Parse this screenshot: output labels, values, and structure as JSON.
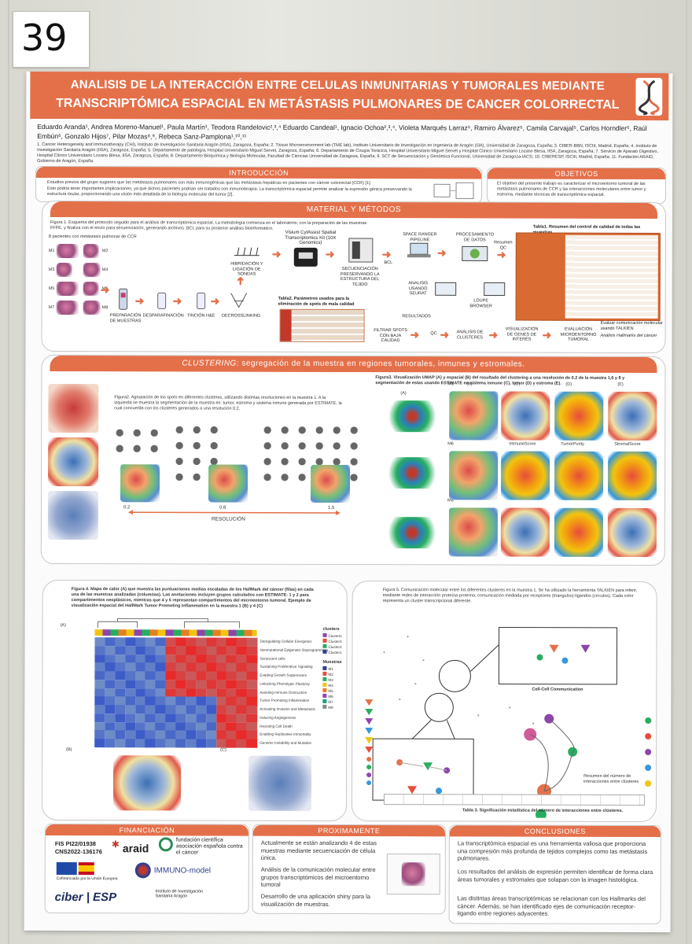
{
  "poster_number": "39",
  "title": {
    "line1": "ANALISIS DE LA INTERACCIÓN ENTRE CELULAS INMUNITARIAS Y TUMORALES MEDIANTE",
    "line2": "TRANSCRIPTÓMICA ESPACIAL EN METÁSTASIS PULMONARES DE CANCER COLORRECTAL"
  },
  "authors": "Eduardo Aranda¹, Andrea Moreno-Manuel¹, Paula Martín¹, Teodora Randelovic²,³,⁴ Eduardo Candeal¹, Ignacio Ochoa²,³,⁴, Violeta Marqués Larraz⁵, Ramiro Álvarez⁵, Camila Carvajal⁵, Carlos Horndler⁶, Raúl Embún⁶, Gonzalo Hijos⁷, Pilar Mozas⁸,⁹, Rebeca Sanz-Pamplona¹,¹⁰,¹¹",
  "affiliations": "1. Cancer Heterogeneity and Immunotherapy (CHI), Instituto de Investigación Sanitaria Aragón (IISA), Zaragoza, España; 2. Tissue Microenvironment lab (TME lab), Instituto Universitario de Investigación en Ingeniería de Aragón (I3A), Universidad de Zaragoza, España; 3. CIBER-BBN, ISCIII, Madrid, España; 4. Instituto de Investigación Sanitaria Aragón (IISA), Zaragoza, España; 5. Departamento de patología, Hospital Universitario Miguel Servet, Zaragoza, España; 6. Departamento de Cirugía Torácica, Hospital Universitario Miguel Servet y Hospital Clínico Universitario Lozano Blesa, IISA, Zaragoza, España; 7. Servicio de Aparato Digestivo, Hospital Clínico Universitario Lozano Blesa, IISA, Zaragoza, España; 8. Departamento Bioquímica y Biología Molecular, Facultad de Ciencias Universidad de Zaragoza, España; 9. SCT de Secuenciación y Genómica Funcional, Universidad de Zaragoza-IACS; 10. CIBERESP, ISCIII, Madrid, España; 11. Fundación ARAID, Gobierno de Aragón, España.",
  "intro": {
    "heading": "INTRODUCCIÓN",
    "b1": "Estudios previos del grupo sugieren que las metástasis pulmonares son más inmunogénicas que las metástasis hepáticas en pacientes con cáncer colorrectal (CCR) [1].",
    "b2": "Esto podría tener importantes implicaciones, ya que dichos pacientes podrían ser tratados con inmunoterapia. La transcriptómica espacial permite analizar la expresión génica preservando la estructura tisular, proporcionando una visión más detallada de la biología molecular del tumor [2]."
  },
  "objectives": {
    "heading": "OBJETIVOS",
    "b1": "El objetivo del presente trabajo es caracterizar el microentorno tumoral de las metástasis pulmonares de CCR y las interacciones moleculares entre tumor y estroma, mediante técnicas de transcriptómica espacial."
  },
  "methods": {
    "heading": "MATERIAL Y MÉTODOS",
    "fig1": "Figura 1. Esquema del protocolo seguido para el análisis de transcriptómica espacial. La metodología comienza en el laboratorio, con la preparación de las muestras FFPE, y finaliza con el envío para secuenciación, generando archivos .BCL para su posterior análisis bioinformático.",
    "patients": "8 pacientes con metástasis pulmonar de CCR",
    "samples": [
      "M1",
      "M2",
      "M3",
      "M4",
      "M5",
      "M6",
      "M7",
      "M8"
    ],
    "flow": {
      "visium": "Visium CytAssist Spatial Transcriptomics Kit (10X Genomics)",
      "hibridacion": "HIBRIDACIÓN Y LIGACIÓN DE SONDAS",
      "secuenciacion": "SECUENCIACIÓN PRESERVANDO LA ESTRUCTURA DEL TEJIDO",
      "bcl": "BCL",
      "spaceranger": "SPACE RANGER PIPELINE",
      "procesamiento": "PROCESAMIENTO DE DATOS",
      "resumen": "Resumen QC",
      "preparacion": "PREPARACIÓN DE MUESTRAS",
      "desparafinacion": "DESPARAFINACIÓN",
      "tincion": "TINCIÓN H&E",
      "decrosslinking": "DECROSSLINKING",
      "analisis_seurat": "ANALISIS USANDO SEURAT",
      "loupe": "LOUPE BROWSER",
      "resultados": "RESULTADOS",
      "filtrar": "FILTRAR SPOTS CON BAJA CALIDAD",
      "qc": "QC",
      "clusters": "ANÁLISIS DE CLÚSTERES",
      "genes": "VISUALIZACIÓN DE GENES DE INTERÉS",
      "micro": "VISUALIZACIÓN MICROENTORNO TUMORAL",
      "evaluacion": "EVALUACIÓN MICROENTORNO TUMORAL",
      "talkien": "Evaluar comunicación molecular usando TALKIEN",
      "hallmark": "Análisis Hallmarks del cáncer"
    },
    "table1": "Tabla1. Resumen del control de calidad de todas las muestras",
    "table2": "Tabla2. Parámetros usados para la eliminación de spots de mala calidad"
  },
  "clustering": {
    "heading_italic": "CLUSTERING",
    "heading_rest": ": segregación de la muestra en regiones tumorales, inmunes y estromales.",
    "fig2": "Figura2. Agrupación de los spots en diferentes clústeres, utilizando distintas resoluciones en la muestra 1. A la izquierda se muestra la segmentación de la muestra en: tumor, estroma y sistema inmune generada por ESTIMATE, la cual concuerda con los clústeres generados a una resolución 0.2.",
    "fig3": "Figura3. Visualización UMAP (A) y espacial (B) del resultado del clustering a una resolución de 0.2 de la muestra 1,6 y 8 y segmentación de estas usando ESTIMATE en sistema inmune (C), tumor (D) y estroma (E).",
    "res_labels": [
      "0.2",
      "0.8",
      "1.5"
    ],
    "resolution": "RESOLUCIÓN",
    "panel_labels": [
      "(A)",
      "(B)",
      "(C)",
      "(D)",
      "(E)"
    ],
    "row_labels": [
      "M1",
      "M6",
      "M8"
    ],
    "colorbars": [
      "ImmuneScore",
      "TumorPurity",
      "StromalScore"
    ]
  },
  "hallmark": {
    "fig4": "Figura 4. Mapa de calor (A) que muestra las puntuaciones medias escaladas de los HallMark del cáncer (filas) en cada una de las muestras analizadas (columnas). Las anotaciones incluyen grupos calculados con ESTIMATE: 1 y 2 para compartimentos neoplásicos, mientras que 4 y 5 representan compartimentos del microentorno tumoral. Ejemplo de visualización espacial del HallMark Tumor Promoting Inflammation en la muestra 1 (B) y 4 (C)",
    "rows": [
      "Deregulating Cellular Energetics",
      "Nonmutational Epigenetic Reprogramming",
      "Senescent cells",
      "Sustaining Proliferative Signaling",
      "Evading Growth Suppressors",
      "Unlocking Phenotypic Plasticity",
      "Avoiding Immune Destruction",
      "Tumor Promoting Inflammation",
      "Activating Invasion and Metastasis",
      "Inducing Angiogenesis",
      "Resisting Cell Death",
      "Enabling Replicative Immortality",
      "Genome Instability and Mutation"
    ],
    "legend_title1": "clusters",
    "legend_title2": "Muestras",
    "clusters": [
      "Cluster5",
      "Cluster4",
      "Cluster2",
      "Cluster1"
    ],
    "muestras": [
      "M1",
      "M2",
      "M3",
      "M4",
      "M5",
      "M6",
      "M7",
      "M8"
    ],
    "label_a": "(A)",
    "label_b": "(B)",
    "label_c": "(C)"
  },
  "communication": {
    "fig5": "Figura 5. Comunicación molecular entre los diferentes clusteres en la muestra 1. Se ha utilizado la herramienta TALKIEN para inferir, mediante redes de interacción proteína-proteína, comunicación mediada por receptores (triángulos)-ligandos (círculos). Cada color representa un cluster transcripcional diferente.",
    "cellcell": "Cell-Cell Communication",
    "resumen": "Resumen del número de interacciones entre clústeres",
    "table3": "Tabla 3. Significación estadística del número de interacciones entre clústeres."
  },
  "funding": {
    "heading": "FINANCIACIÓN",
    "fis": "FIS PI22/01938",
    "cns": "CNS2022-136176",
    "araid": "araid",
    "fundacion": "fundación científica asociación española contra el cáncer",
    "eu": "Cofinanciado por la Unión Europea",
    "immuno": "IMMUNO-model",
    "ciber": "ciber | ESP",
    "iisa": "Instituto de Investigación Sanitaria Aragón"
  },
  "next": {
    "heading": "PROXIMAMENTE",
    "b1": "Actualmente se están analizando 4 de estas muestras mediante secuenciación de célula única.",
    "b2": "Análisis de la comunicación molecular entre grupos transcriptómicos del microentorno tumoral",
    "b3": "Desarrollo de una aplicación shiny para la visualización de muestras."
  },
  "conclusions": {
    "heading": "CONCLUSIONES",
    "b1": "La transcriptómica espacial es una herramienta valiosa que proporciona una compresión más profunda de tejidos complejos como las metástasis pulmonares.",
    "b2": "Los resultados del análisis de expresión permiten identificar de forma clara áreas tumorales y estromales que solapan con la imagen histológica.",
    "b3": "Las distintas áreas transcriptómicas se relacionan con los Hallmarks del cáncer. Además, se han identificado ejes de comunicación receptor-ligando entre regiones adyacentes."
  },
  "colors": {
    "accent": "#e4704a",
    "poster_bg": "#fbfbfb"
  }
}
